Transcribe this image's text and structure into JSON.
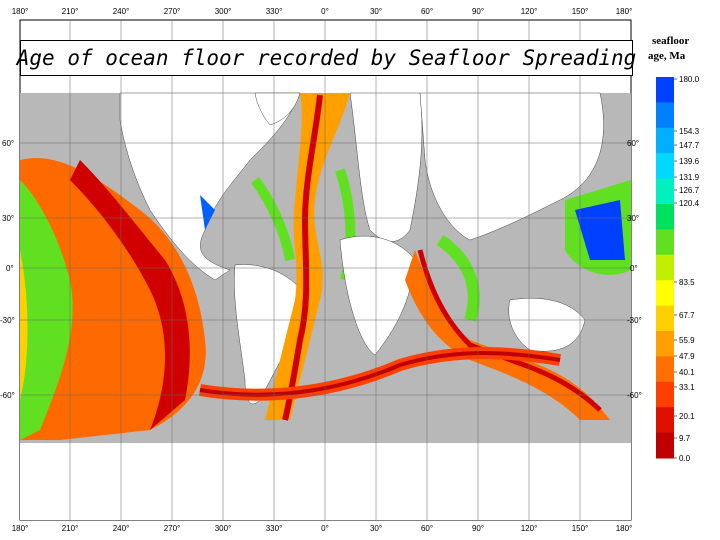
{
  "title": "Age of ocean floor recorded by Seafloor Spreading",
  "legend": {
    "title_line1": "seafloor",
    "title_line2": "age, Ma",
    "ticks": [
      "180.0",
      "154.3",
      "147.7",
      "139.6",
      "131.9",
      "126.7",
      "120.4",
      "83.5",
      "67.7",
      "55.9",
      "47.9",
      "40.1",
      "33.1",
      "20.1",
      "9.7",
      "0.0"
    ],
    "colors": [
      "#0040ff",
      "#0080ff",
      "#00b0ff",
      "#00d8ff",
      "#00f0c0",
      "#00e060",
      "#60e020",
      "#c0f000",
      "#ffff00",
      "#ffd000",
      "#ffa000",
      "#ff7000",
      "#ff4000",
      "#e01000",
      "#c00000"
    ]
  },
  "axes": {
    "lon_top": [
      "180°",
      "210°",
      "240°",
      "270°",
      "300°",
      "330°",
      "0°",
      "30°",
      "60°",
      "90°",
      "120°",
      "150°",
      "180°"
    ],
    "lon_bottom": [
      "180°",
      "210°",
      "240°",
      "270°",
      "300°",
      "330°",
      "0°",
      "30°",
      "60°",
      "90°",
      "120°",
      "150°",
      "180°"
    ],
    "lat_left": [
      "60°",
      "30°",
      "0°",
      "-30°",
      "-60°"
    ],
    "lat_right": [
      "60°",
      "30°",
      "0°",
      "-30°",
      "-60°"
    ]
  }
}
